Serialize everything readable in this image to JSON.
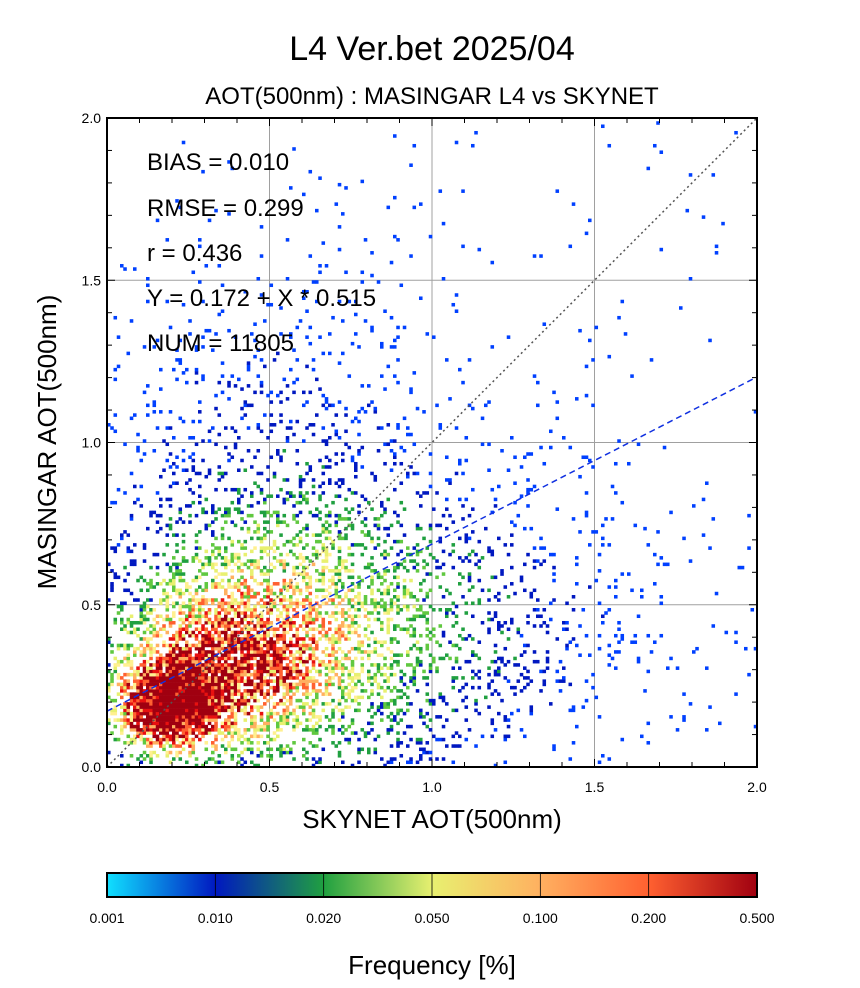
{
  "chart_data": {
    "type": "heatmap",
    "title": "L4  Ver.bet  2025/04",
    "subtitle": "AOT(500nm) : MASINGAR L4 vs SKYNET",
    "xlabel": "SKYNET AOT(500nm)",
    "ylabel": "MASINGAR AOT(500nm)",
    "xlim": [
      0.0,
      2.0
    ],
    "ylim": [
      0.0,
      2.0
    ],
    "x_ticks": [
      "0.0",
      "0.5",
      "1.0",
      "1.5",
      "2.0"
    ],
    "y_ticks": [
      "0.0",
      "0.5",
      "1.0",
      "1.5",
      "2.0"
    ],
    "grid": true,
    "stats": {
      "bias": "BIAS = 0.010",
      "rmse": "RMSE = 0.299",
      "r": "r = 0.436",
      "regression": "Y = 0.172 + X * 0.515",
      "num": "NUM = 11805"
    },
    "one_to_one_line": {
      "intercept": 0.0,
      "slope": 1.0,
      "style": "dotted",
      "color": "#555555"
    },
    "regression_line": {
      "intercept": 0.172,
      "slope": 0.515,
      "style": "dashed",
      "color": "#1030e0"
    },
    "colorbar": {
      "label": "Frequency [%]",
      "ticks": [
        "0.001",
        "0.010",
        "0.020",
        "0.050",
        "0.100",
        "0.200",
        "0.500"
      ],
      "colors": [
        "#10e0ff",
        "#0040ff",
        "#0018c0",
        "#20a040",
        "#60c840",
        "#e8f070",
        "#fff090",
        "#ffb060",
        "#ff6030",
        "#e81010",
        "#a00010"
      ]
    },
    "density_clusters": [
      {
        "x": 0.18,
        "y": 0.18,
        "sx": 0.1,
        "sy": 0.09,
        "w": 1.0
      },
      {
        "x": 0.35,
        "y": 0.3,
        "sx": 0.2,
        "sy": 0.16,
        "w": 0.6
      },
      {
        "x": 0.55,
        "y": 0.45,
        "sx": 0.3,
        "sy": 0.25,
        "w": 0.35
      },
      {
        "x": 0.9,
        "y": 0.4,
        "sx": 0.45,
        "sy": 0.3,
        "w": 0.15
      },
      {
        "x": 0.5,
        "y": 1.05,
        "sx": 0.3,
        "sy": 0.35,
        "w": 0.08
      }
    ]
  }
}
